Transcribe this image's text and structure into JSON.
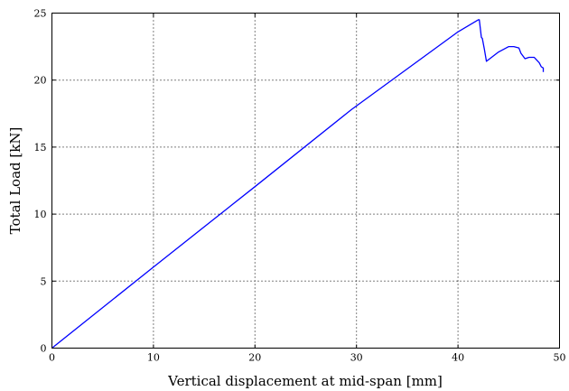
{
  "chart_data": {
    "type": "line",
    "title": "",
    "xlabel": "Vertical displacement at mid-span [mm]",
    "ylabel": "Total Load [kN]",
    "xlim": [
      0,
      50
    ],
    "ylim": [
      0,
      25
    ],
    "xticks": [
      "0",
      "10",
      "20",
      "30",
      "40",
      "50"
    ],
    "yticks": [
      "0",
      "5",
      "10",
      "15",
      "20",
      "25"
    ],
    "grid": true,
    "legend": "none",
    "series": [
      {
        "color": "#0000ff",
        "x": [
          0,
          10,
          20,
          29.5,
          40,
          42.0,
          42.1,
          42.3,
          42.4,
          42.6,
          42.8,
          44.0,
          45.0,
          45.5,
          46.0,
          46.2,
          46.6,
          47.0,
          47.5,
          48.0,
          48.2,
          48.4,
          48.4
        ],
        "y": [
          0,
          6.05,
          12.05,
          17.8,
          23.6,
          24.5,
          24.5,
          23.2,
          23.1,
          22.3,
          21.4,
          22.1,
          22.5,
          22.5,
          22.4,
          22.0,
          21.6,
          21.7,
          21.7,
          21.3,
          21.0,
          20.9,
          20.6
        ]
      }
    ]
  }
}
